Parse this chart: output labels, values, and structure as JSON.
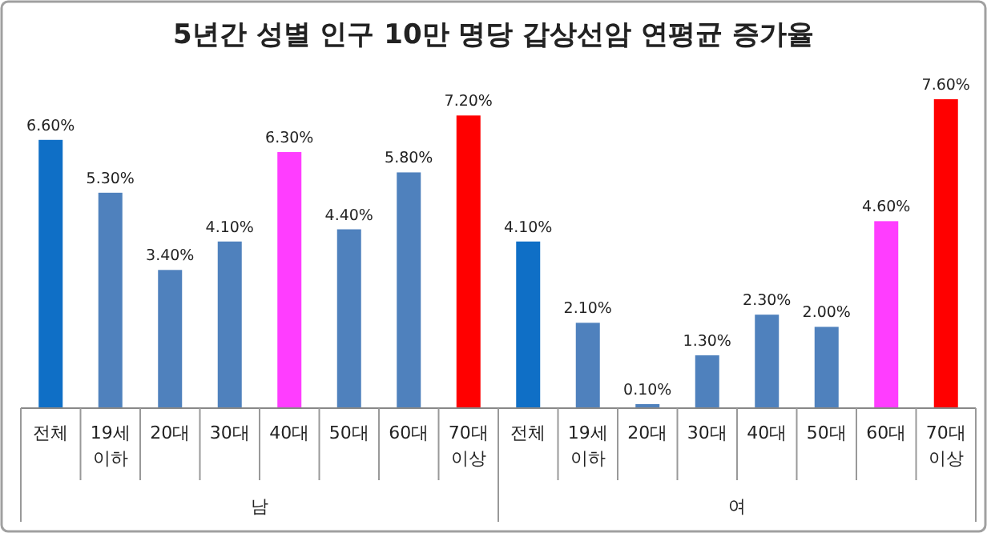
{
  "chart_data": {
    "type": "bar",
    "title": "5년간 성별 인구 10만 명당 갑상선암 연평균 증가율",
    "categories": [
      "전체",
      "19세 이하",
      "20대",
      "30대",
      "40대",
      "50대",
      "60대",
      "70대 이상",
      "전체",
      "19세 이하",
      "20대",
      "30대",
      "40대",
      "50대",
      "60대",
      "70대 이상"
    ],
    "values": [
      6.6,
      5.3,
      3.4,
      4.1,
      6.3,
      4.4,
      5.8,
      7.2,
      4.1,
      2.1,
      0.1,
      1.3,
      2.3,
      2.0,
      4.6,
      7.6
    ],
    "value_labels": [
      "6.60%",
      "5.30%",
      "3.40%",
      "4.10%",
      "6.30%",
      "4.40%",
      "5.80%",
      "7.20%",
      "4.10%",
      "2.10%",
      "0.10%",
      "1.30%",
      "2.30%",
      "2.00%",
      "4.60%",
      "7.60%"
    ],
    "colors": [
      "#0f6fc6",
      "#4f81bd",
      "#4f81bd",
      "#4f81bd",
      "#ff3dff",
      "#4f81bd",
      "#4f81bd",
      "#ff0000",
      "#0f6fc6",
      "#4f81bd",
      "#4f81bd",
      "#4f81bd",
      "#4f81bd",
      "#4f81bd",
      "#ff3dff",
      "#ff0000"
    ],
    "annotations": [
      "남",
      "여"
    ]
  }
}
